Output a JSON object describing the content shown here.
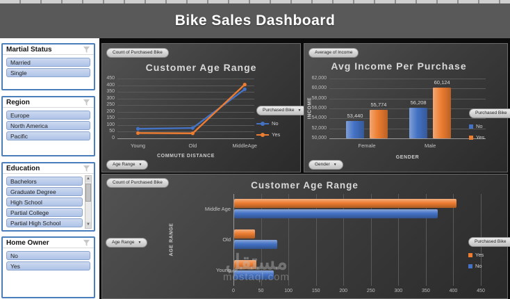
{
  "header": {
    "title": "Bike Sales Dashboard"
  },
  "sidebar": {
    "slicers": [
      {
        "title": "Martial Status",
        "items": [
          "Married",
          "Single"
        ],
        "has_scrollbar": false
      },
      {
        "title": "Region",
        "items": [
          "Europe",
          "North America",
          "Pacific"
        ],
        "has_scrollbar": false
      },
      {
        "title": "Education",
        "items": [
          "Bachelors",
          "Graduate Degree",
          "High School",
          "Partial College",
          "Partial High School"
        ],
        "has_scrollbar": true
      },
      {
        "title": "Home Owner",
        "items": [
          "No",
          "Yes"
        ],
        "has_scrollbar": false
      }
    ]
  },
  "watermark": {
    "arabic": "مستقل",
    "latin": "mostaql.com"
  },
  "colors": {
    "blue": "#4472c4",
    "orange": "#ed7d31",
    "panel_text": "#d9d9d9"
  },
  "chart_data": [
    {
      "type": "line",
      "title": "Customer Age Range",
      "field_button": "Count of Purchased Bike",
      "axis_button": "Age Range",
      "legend_button": "Purchased Bike",
      "categories": [
        "Young",
        "Old",
        "MiddleAge"
      ],
      "series": [
        {
          "name": "No",
          "color": "#4472c4",
          "values": [
            72,
            78,
            370
          ]
        },
        {
          "name": "Yes",
          "color": "#ed7d31",
          "values": [
            40,
            38,
            405
          ]
        }
      ],
      "xlabel": "COMMUTE DISTANCE",
      "ylim": [
        0,
        450
      ],
      "ytick": 50,
      "grid": true,
      "legend_position": "right"
    },
    {
      "type": "bar",
      "title": "Avg Income Per Purchase",
      "field_button": "Average of Income",
      "axis_button": "Gender",
      "legend_button": "Purchased Bike",
      "categories": [
        "Female",
        "Male"
      ],
      "series": [
        {
          "name": "No",
          "color": "#4472c4",
          "values": [
            53440,
            56208
          ],
          "labels": [
            "53,440",
            "56,208"
          ]
        },
        {
          "name": "Yes",
          "color": "#ed7d31",
          "values": [
            55774,
            60124
          ],
          "labels": [
            "55,774",
            "60,124"
          ]
        }
      ],
      "xlabel": "GENDER",
      "ylabel": "INCOME",
      "ylim": [
        50000,
        62000
      ],
      "ytick": 2000,
      "grid": true,
      "legend_position": "right"
    },
    {
      "type": "bar-horizontal",
      "title": "Customer Age Range",
      "field_button": "Count of Purchased Bike",
      "axis_button": "Age Range",
      "legend_button": "Purchased Bike",
      "categories": [
        "Middle Age",
        "Old",
        "Young"
      ],
      "series": [
        {
          "name": "Yes",
          "color": "#ed7d31",
          "values": [
            405,
            38,
            40
          ]
        },
        {
          "name": "No",
          "color": "#4472c4",
          "values": [
            370,
            78,
            72
          ]
        }
      ],
      "ylabel": "AGE RANGE",
      "xlim": [
        0,
        450
      ],
      "xtick": 50,
      "grid": true,
      "legend_position": "right"
    }
  ]
}
